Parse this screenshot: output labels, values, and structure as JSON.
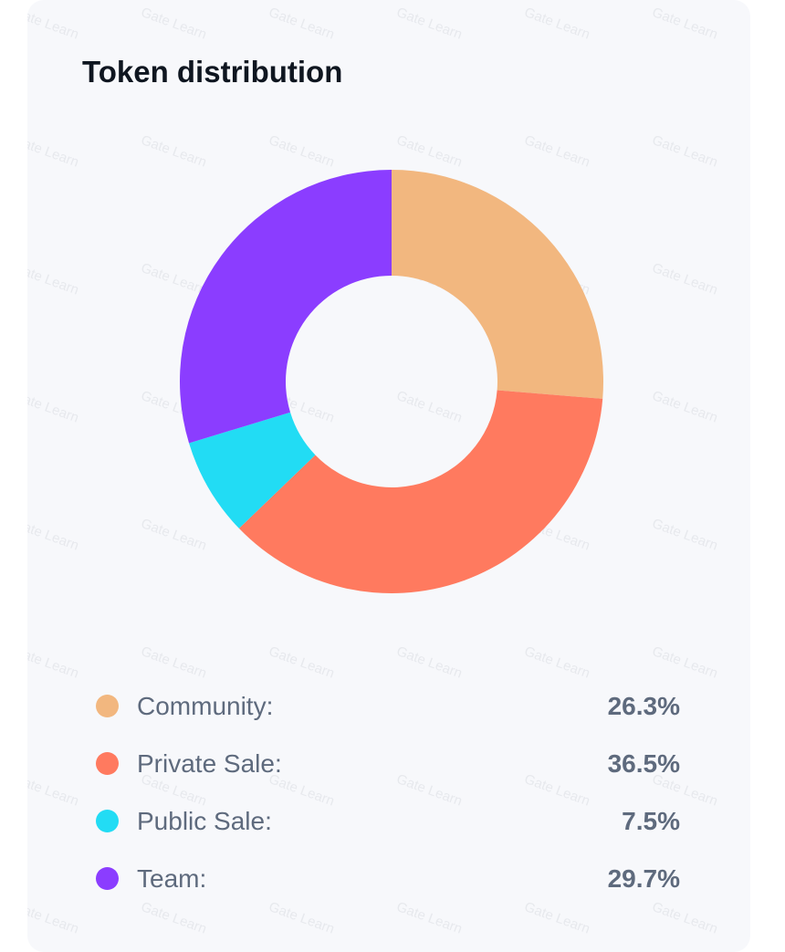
{
  "card": {
    "title": "Token distribution",
    "watermark_text": "Gate Learn"
  },
  "chart_data": {
    "type": "pie",
    "donut": true,
    "title": "Token distribution",
    "series": [
      {
        "name": "Community",
        "value": 26.3,
        "color": "#f2b77f"
      },
      {
        "name": "Private Sale",
        "value": 36.5,
        "color": "#ff7a5f"
      },
      {
        "name": "Public Sale",
        "value": 7.5,
        "color": "#22dcf4"
      },
      {
        "name": "Team",
        "value": 29.7,
        "color": "#8b3dff"
      }
    ]
  },
  "legend": [
    {
      "label": "Community:",
      "value": "26.3%",
      "color": "#f2b77f"
    },
    {
      "label": "Private Sale:",
      "value": "36.5%",
      "color": "#ff7a5f"
    },
    {
      "label": "Public Sale:",
      "value": "7.5%",
      "color": "#22dcf4"
    },
    {
      "label": "Team:",
      "value": "29.7%",
      "color": "#8b3dff"
    }
  ]
}
